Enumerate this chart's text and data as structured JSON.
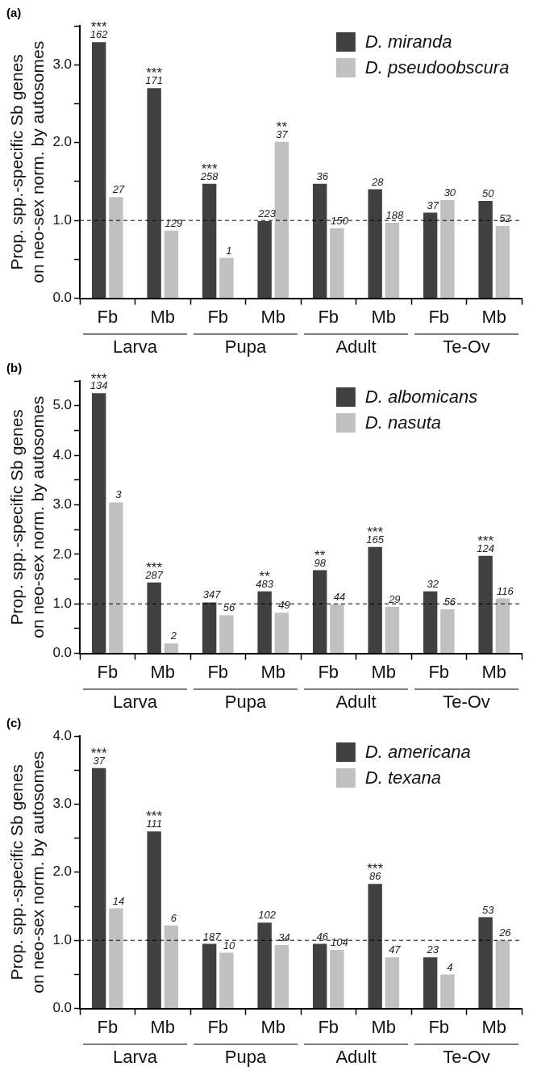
{
  "chart_data": [
    {
      "type": "bar",
      "title": "(a)",
      "ylabel": "Prop. spp.-specific Sb genes\non neo-sex norm. by autosomes",
      "categories": [
        "Fb",
        "Mb",
        "Fb",
        "Mb",
        "Fb",
        "Mb",
        "Fb",
        "Mb"
      ],
      "annotations": [
        "Larva",
        "Pupa",
        "Adult",
        "Te-Ov",
        "162",
        "171",
        "258",
        "223",
        "36",
        "28",
        "37",
        "50",
        "27",
        "129",
        "1",
        "37",
        "150",
        "188",
        "30",
        "52",
        "***",
        "***",
        "***",
        null,
        null,
        null,
        null,
        null,
        null,
        null,
        null,
        "**",
        null,
        null,
        null,
        null
      ],
      "series": [
        {
          "name": "D. miranda",
          "color": "#404040",
          "values": [
            3.29,
            2.7,
            1.47,
            0.99,
            1.47,
            1.4,
            1.1,
            1.25
          ]
        },
        {
          "name": "D. pseudoobscura",
          "color": "#c0c0c0",
          "values": [
            1.3,
            0.87,
            0.52,
            2.01,
            0.9,
            0.97,
            1.26,
            0.93
          ]
        }
      ],
      "ylim": [
        0,
        3.5
      ],
      "yticks": [
        {
          "value": 0,
          "label": "0.0"
        },
        {
          "value": 0.5,
          "label": null
        },
        {
          "value": 1,
          "label": "1.0"
        },
        {
          "value": 1.5,
          "label": null
        },
        {
          "value": 2,
          "label": "2.0"
        },
        {
          "value": 2.5,
          "label": null
        },
        {
          "value": 3,
          "label": "3.0"
        },
        {
          "value": 3.5,
          "label": null
        }
      ],
      "ref_lines": [
        {
          "axis": "y",
          "value": 1,
          "line_style": "dashed"
        }
      ],
      "legend": "top right",
      "grid": false
    },
    {
      "type": "bar",
      "title": "(b)",
      "ylabel": "Prop. spp.-specific Sb genes\non neo-sex norm. by autosomes",
      "categories": [
        "Fb",
        "Mb",
        "Fb",
        "Mb",
        "Fb",
        "Mb",
        "Fb",
        "Mb"
      ],
      "annotations": [
        "Larva",
        "Pupa",
        "Adult",
        "Te-Ov",
        "134",
        "287",
        "347",
        "483",
        "98",
        "165",
        "32",
        "124",
        "3",
        "2",
        "56",
        "49",
        "44",
        "29",
        "56",
        "116",
        "***",
        "***",
        null,
        "**",
        "**",
        "***",
        null,
        "***",
        null,
        null,
        null,
        null,
        null,
        null,
        null,
        null
      ],
      "series": [
        {
          "name": "D. albomicans",
          "color": "#404040",
          "values": [
            5.25,
            1.43,
            1.03,
            1.25,
            1.68,
            2.15,
            1.25,
            1.97
          ]
        },
        {
          "name": "D. nasuta",
          "color": "#c0c0c0",
          "values": [
            3.05,
            0.2,
            0.77,
            0.82,
            0.99,
            0.94,
            0.89,
            1.11
          ]
        }
      ],
      "ylim": [
        0,
        5.5
      ],
      "yticks": [
        {
          "value": 0,
          "label": "0.0"
        },
        {
          "value": 0.5,
          "label": null
        },
        {
          "value": 1,
          "label": "1.0"
        },
        {
          "value": 1.5,
          "label": null
        },
        {
          "value": 2,
          "label": "2.0"
        },
        {
          "value": 2.5,
          "label": null
        },
        {
          "value": 3,
          "label": "3.0"
        },
        {
          "value": 3.5,
          "label": null
        },
        {
          "value": 4,
          "label": "4.0"
        },
        {
          "value": 4.5,
          "label": null
        },
        {
          "value": 5,
          "label": "5.0"
        },
        {
          "value": 5.5,
          "label": null
        }
      ],
      "ref_lines": [
        {
          "axis": "y",
          "value": 1,
          "line_style": "dashed"
        }
      ],
      "legend": "top right",
      "grid": false
    },
    {
      "type": "bar",
      "title": "(c)",
      "ylabel": "Prop. spp.-specific Sb genes\non neo-sex norm. by autosomes",
      "categories": [
        "Fb",
        "Mb",
        "Fb",
        "Mb",
        "Fb",
        "Mb",
        "Fb",
        "Mb"
      ],
      "annotations": [
        "Larva",
        "Pupa",
        "Adult",
        "Te-Ov",
        "37",
        "111",
        "187",
        "102",
        "46",
        "86",
        "23",
        "53",
        "14",
        "6",
        "10",
        "34",
        "104",
        "47",
        "4",
        "26",
        "***",
        "***",
        null,
        null,
        null,
        "***",
        null,
        null,
        null,
        null,
        null,
        null,
        null,
        null,
        null,
        null
      ],
      "series": [
        {
          "name": "D. americana",
          "color": "#404040",
          "values": [
            3.53,
            2.6,
            0.95,
            1.26,
            0.95,
            1.83,
            0.75,
            1.34
          ]
        },
        {
          "name": "D. texana",
          "color": "#c0c0c0",
          "values": [
            1.47,
            1.22,
            0.82,
            0.93,
            0.86,
            0.75,
            0.5,
            1.0
          ]
        }
      ],
      "ylim": [
        0,
        4
      ],
      "yticks": [
        {
          "value": 0,
          "label": "0.0"
        },
        {
          "value": 0.5,
          "label": null
        },
        {
          "value": 1,
          "label": "1.0"
        },
        {
          "value": 1.5,
          "label": null
        },
        {
          "value": 2,
          "label": "2.0"
        },
        {
          "value": 2.5,
          "label": null
        },
        {
          "value": 3,
          "label": "3.0"
        },
        {
          "value": 3.5,
          "label": null
        },
        {
          "value": 4,
          "label": "4.0"
        }
      ],
      "ref_lines": [
        {
          "axis": "y",
          "value": 1,
          "line_style": "dashed"
        }
      ],
      "legend": "top right",
      "grid": false
    }
  ]
}
